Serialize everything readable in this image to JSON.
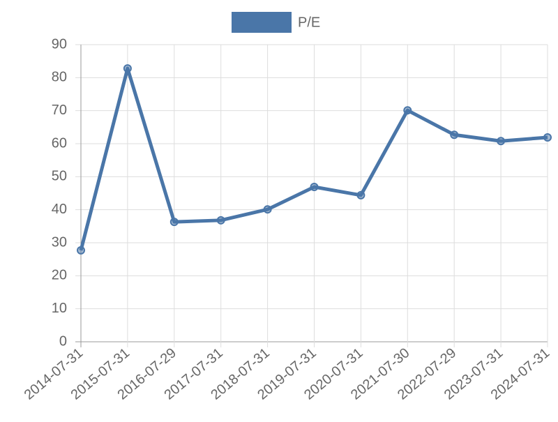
{
  "chart_data": {
    "type": "line",
    "categories": [
      "2014-07-31",
      "2015-07-31",
      "2016-07-29",
      "2017-07-31",
      "2018-07-31",
      "2019-07-31",
      "2020-07-31",
      "2021-07-30",
      "2022-07-29",
      "2023-07-31",
      "2024-07-31"
    ],
    "series": [
      {
        "name": "P/E",
        "color": "#4a76a8",
        "values": [
          27.7,
          82.8,
          36.3,
          36.8,
          40.1,
          46.9,
          44.4,
          70.1,
          62.7,
          60.8,
          61.9
        ]
      }
    ],
    "ylim": [
      0,
      90
    ],
    "yticks": [
      0,
      10,
      20,
      30,
      40,
      50,
      60,
      70,
      80,
      90
    ],
    "grid": true,
    "legend": "top"
  }
}
